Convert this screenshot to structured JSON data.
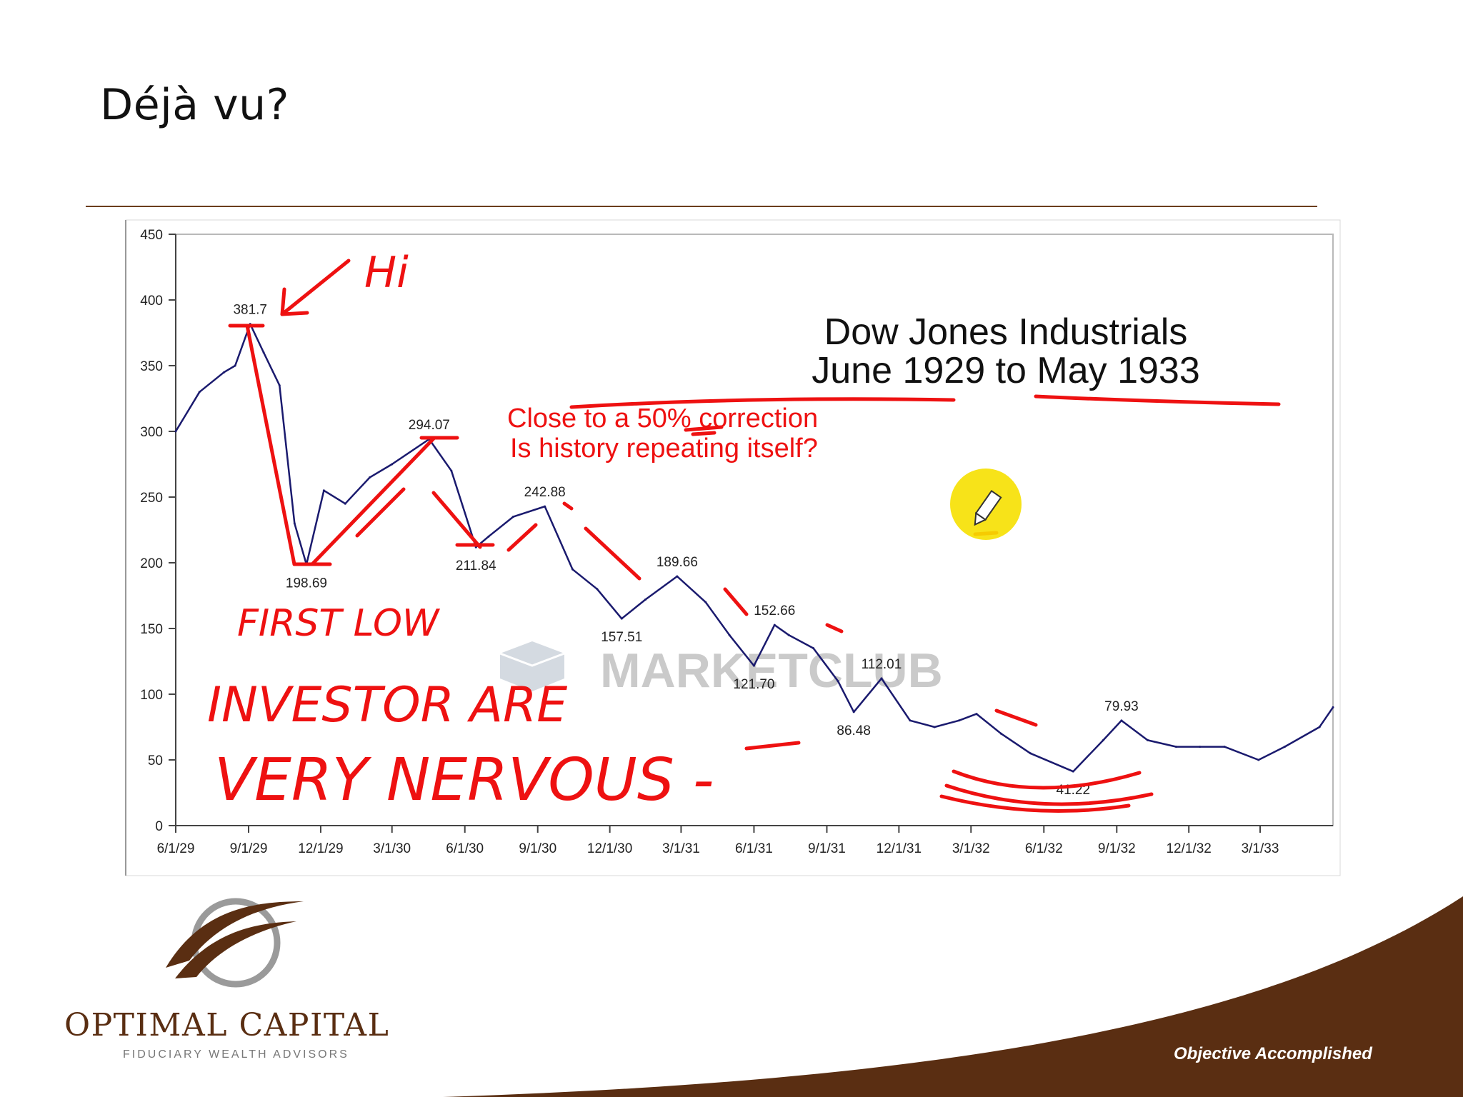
{
  "slide": {
    "title": "Déjà vu?",
    "logo_name": "OPTIMAL CAPITAL",
    "logo_tagline": "FIDUCIARY WEALTH ADVISORS",
    "footer_tagline": "Objective Accomplished",
    "colors": {
      "brand_brown": "#5a2e12",
      "annotation_red": "#ee1111",
      "line_navy": "#1a1a6e"
    }
  },
  "chart_data": {
    "type": "line",
    "title": "Dow Jones Industrials",
    "subtitle": "June 1929 to May 1933",
    "note_lines": [
      "Close to a 50% correction",
      "Is history repeating itself?"
    ],
    "watermark": "MARKETCLUB",
    "ylim": [
      0,
      450
    ],
    "yticks": [
      0,
      50,
      100,
      150,
      200,
      250,
      300,
      350,
      400,
      450
    ],
    "xlim": [
      "1929-06-01",
      "1933-06-01"
    ],
    "xtick_labels": [
      "6/1/29",
      "9/1/29",
      "12/1/29",
      "3/1/30",
      "6/1/30",
      "9/1/30",
      "12/1/30",
      "3/1/31",
      "6/1/31",
      "9/1/31",
      "12/1/31",
      "3/1/32",
      "6/1/32",
      "9/1/32",
      "12/1/32",
      "3/1/33"
    ],
    "grid": false,
    "series": [
      {
        "x": [
          "1929-06-01",
          "1929-07-01",
          "1929-08-01",
          "1929-08-15",
          "1929-09-03",
          "1929-09-20",
          "1929-10-10",
          "1929-10-29",
          "1929-11-13",
          "1929-12-05",
          "1930-01-01",
          "1930-02-01",
          "1930-03-01",
          "1930-04-17",
          "1930-05-15",
          "1930-06-15",
          "1930-07-01",
          "1930-08-01",
          "1930-09-10",
          "1930-10-15",
          "1930-11-15",
          "1930-12-16",
          "1931-01-15",
          "1931-02-24",
          "1931-04-01",
          "1931-05-01",
          "1931-06-01",
          "1931-06-27",
          "1931-07-15",
          "1931-08-15",
          "1931-09-15",
          "1931-10-05",
          "1931-11-09",
          "1931-12-15",
          "1932-01-15",
          "1932-02-15",
          "1932-03-08",
          "1932-04-08",
          "1932-05-15",
          "1932-07-08",
          "1932-08-15",
          "1932-09-07",
          "1932-10-10",
          "1932-11-15",
          "1932-12-15",
          "1933-01-15",
          "1933-02-27",
          "1933-04-01",
          "1933-05-15",
          "1933-06-01"
        ],
        "y": [
          300,
          330,
          345,
          350,
          381.7,
          360,
          335,
          230,
          198.69,
          255,
          245,
          265,
          275,
          294.07,
          270,
          211.84,
          220,
          235,
          242.88,
          195,
          180,
          157.51,
          172,
          189.66,
          170,
          145,
          121.7,
          152.66,
          145,
          135,
          110,
          86.48,
          112.01,
          80,
          75,
          80,
          85,
          70,
          55,
          41.22,
          65,
          79.93,
          65,
          60,
          60,
          60,
          50,
          60,
          75,
          90
        ]
      }
    ],
    "data_labels": [
      {
        "x": "1929-09-03",
        "y": 381.7,
        "text": "381.7"
      },
      {
        "x": "1929-11-13",
        "y": 198.69,
        "text": "198.69"
      },
      {
        "x": "1930-04-17",
        "y": 294.07,
        "text": "294.07"
      },
      {
        "x": "1930-06-15",
        "y": 211.84,
        "text": "211.84"
      },
      {
        "x": "1930-09-10",
        "y": 242.88,
        "text": "242.88"
      },
      {
        "x": "1930-12-16",
        "y": 157.51,
        "text": "157.51"
      },
      {
        "x": "1931-02-24",
        "y": 189.66,
        "text": "189.66"
      },
      {
        "x": "1931-06-01",
        "y": 121.7,
        "text": "121.70"
      },
      {
        "x": "1931-06-27",
        "y": 152.66,
        "text": "152.66"
      },
      {
        "x": "1931-10-05",
        "y": 86.48,
        "text": "86.48"
      },
      {
        "x": "1931-11-09",
        "y": 112.01,
        "text": "112.01"
      },
      {
        "x": "1932-07-08",
        "y": 41.22,
        "text": "41.22"
      },
      {
        "x": "1932-09-07",
        "y": 79.93,
        "text": "79.93"
      }
    ],
    "handwritten_annotations": [
      "Hi",
      "FIRST LOW",
      "INVESTOR ARE",
      "VERY NERVOUS -"
    ]
  }
}
